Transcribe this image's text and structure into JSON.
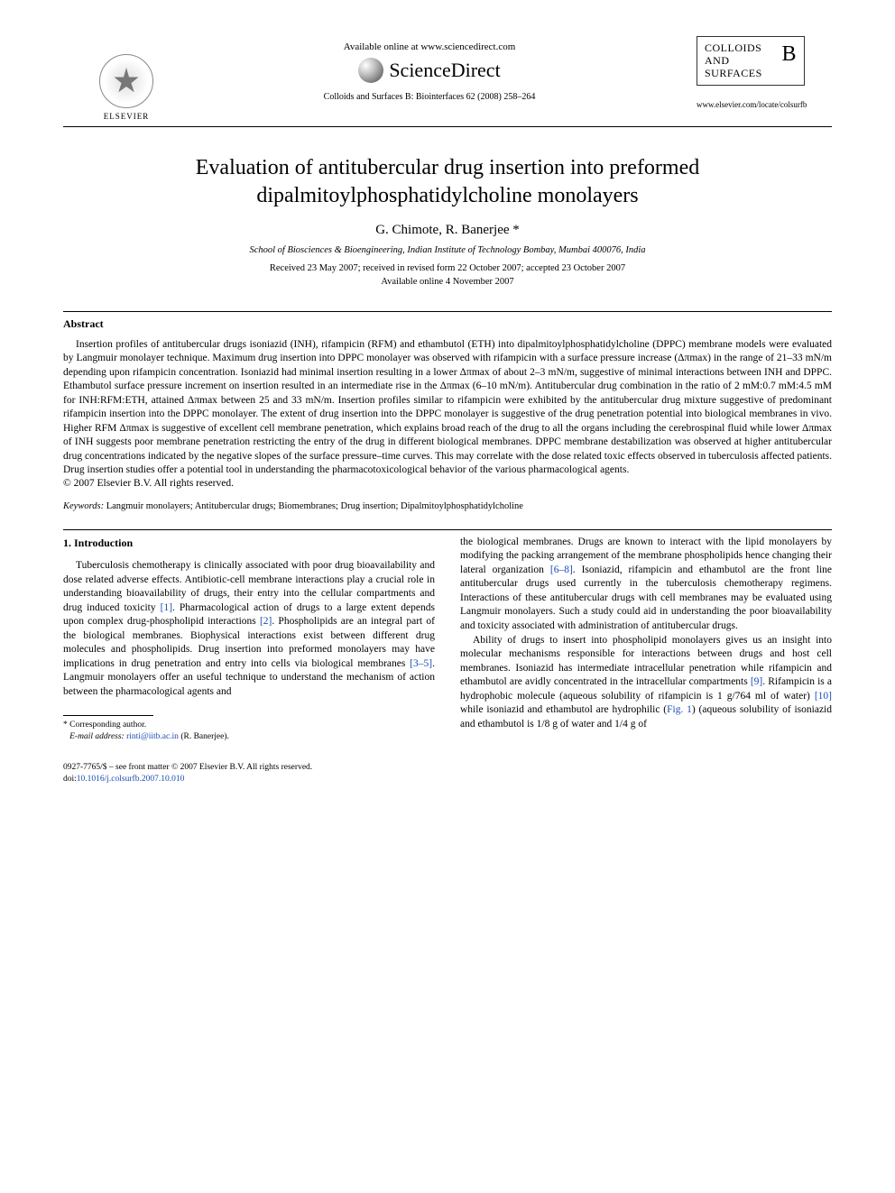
{
  "header": {
    "availability": "Available online at www.sciencedirect.com",
    "sciencedirect": "ScienceDirect",
    "journal_ref": "Colloids and Surfaces B: Biointerfaces 62 (2008) 258–264",
    "elsevier_label": "ELSEVIER",
    "journal_box_lines": [
      "COLLOIDS",
      "AND",
      "SURFACES"
    ],
    "journal_box_letter": "B",
    "journal_url": "www.elsevier.com/locate/colsurfb"
  },
  "article": {
    "title": "Evaluation of antitubercular drug insertion into preformed dipalmitoylphosphatidylcholine monolayers",
    "authors": "G. Chimote, R. Banerjee *",
    "affiliation": "School of Biosciences & Bioengineering, Indian Institute of Technology Bombay, Mumbai 400076, India",
    "received": "Received 23 May 2007; received in revised form 22 October 2007; accepted 23 October 2007",
    "available": "Available online 4 November 2007"
  },
  "abstract": {
    "heading": "Abstract",
    "text": "Insertion profiles of antitubercular drugs isoniazid (INH), rifampicin (RFM) and ethambutol (ETH) into dipalmitoylphosphatidylcholine (DPPC) membrane models were evaluated by Langmuir monolayer technique. Maximum drug insertion into DPPC monolayer was observed with rifampicin with a surface pressure increase (Δπmax) in the range of 21–33 mN/m depending upon rifampicin concentration. Isoniazid had minimal insertion resulting in a lower Δπmax of about 2–3 mN/m, suggestive of minimal interactions between INH and DPPC. Ethambutol surface pressure increment on insertion resulted in an intermediate rise in the Δπmax (6–10 mN/m). Antitubercular drug combination in the ratio of 2 mM:0.7 mM:4.5 mM for INH:RFM:ETH, attained Δπmax between 25 and 33 mN/m. Insertion profiles similar to rifampicin were exhibited by the antitubercular drug mixture suggestive of predominant rifampicin insertion into the DPPC monolayer. The extent of drug insertion into the DPPC monolayer is suggestive of the drug penetration potential into biological membranes in vivo. Higher RFM Δπmax is suggestive of excellent cell membrane penetration, which explains broad reach of the drug to all the organs including the cerebrospinal fluid while lower Δπmax of INH suggests poor membrane penetration restricting the entry of the drug in different biological membranes. DPPC membrane destabilization was observed at higher antitubercular drug concentrations indicated by the negative slopes of the surface pressure–time curves. This may correlate with the dose related toxic effects observed in tuberculosis affected patients. Drug insertion studies offer a potential tool in understanding the pharmacotoxicological behavior of the various pharmacological agents.",
    "copyright": "© 2007 Elsevier B.V. All rights reserved."
  },
  "keywords": {
    "label": "Keywords:",
    "text": "Langmuir monolayers; Antitubercular drugs; Biomembranes; Drug insertion; Dipalmitoylphosphatidylcholine"
  },
  "intro": {
    "heading": "1.  Introduction",
    "col1_p1_a": "Tuberculosis chemotherapy is clinically associated with poor drug bioavailability and dose related adverse effects. Antibiotic-cell membrane interactions play a crucial role in understanding bioavailability of drugs, their entry into the cellular compartments and drug induced toxicity ",
    "ref1": "[1]",
    "col1_p1_b": ". Pharmacological action of drugs to a large extent depends upon complex drug-phospholipid interactions ",
    "ref2": "[2]",
    "col1_p1_c": ". Phospholipids are an integral part of the biological membranes. Biophysical interactions exist between different drug molecules and phospholipids. Drug insertion into preformed monolayers may have implications in drug penetration and entry into cells via biological membranes ",
    "ref3_5": "[3–5]",
    "col1_p1_d": ". Langmuir monolayers offer an useful technique to understand the mechanism of action between the pharmacological agents and",
    "col2_p1_a": "the biological membranes. Drugs are known to interact with the lipid monolayers by modifying the packing arrangement of the membrane phospholipids hence changing their lateral organization ",
    "ref6_8": "[6–8]",
    "col2_p1_b": ". Isoniazid, rifampicin and ethambutol are the front line antitubercular drugs used currently in the tuberculosis chemotherapy regimens. Interactions of these antitubercular drugs with cell membranes may be evaluated using Langmuir monolayers. Such a study could aid in understanding the poor bioavailability and toxicity associated with administration of antitubercular drugs.",
    "col2_p2_a": "Ability of drugs to insert into phospholipid monolayers gives us an insight into molecular mechanisms responsible for interactions between drugs and host cell membranes. Isoniazid has intermediate intracellular penetration while rifampicin and ethambutol are avidly concentrated in the intracellular compartments ",
    "ref9": "[9]",
    "col2_p2_b": ". Rifampicin is a hydrophobic molecule (aqueous solubility of rifampicin is 1 g/764 ml of water) ",
    "ref10": "[10]",
    "col2_p2_c": " while isoniazid and ethambutol are hydrophilic (",
    "fig1": "Fig. 1",
    "col2_p2_d": ") (aqueous solubility of isoniazid and ethambutol is 1/8 g of water and 1/4 g of"
  },
  "footnote": {
    "corr": "* Corresponding author.",
    "email_label": "E-mail address:",
    "email": "rinti@iitb.ac.in",
    "email_name": "(R. Banerjee)."
  },
  "footer": {
    "line1": "0927-7765/$ – see front matter © 2007 Elsevier B.V. All rights reserved.",
    "doi_label": "doi:",
    "doi": "10.1016/j.colsurfb.2007.10.010"
  }
}
